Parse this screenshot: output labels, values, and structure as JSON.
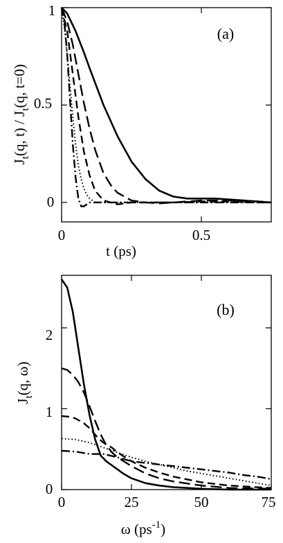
{
  "chart_data": [
    {
      "type": "line",
      "panel_label": "(a)",
      "xlabel": "t (ps)",
      "ylabel": "J_t(q, t) / J_t(q, t=0)",
      "xlim": [
        0,
        0.75
      ],
      "ylim": [
        -0.1,
        1.0
      ],
      "xticks": [
        0,
        0.5
      ],
      "xtick_labels": [
        "0",
        "0.5"
      ],
      "yticks": [
        0,
        0.5,
        1
      ],
      "ytick_labels": [
        "0",
        "0.5",
        "1"
      ],
      "grid": false,
      "series": [
        {
          "style": "solid",
          "x": [
            0,
            0.02,
            0.05,
            0.08,
            0.1,
            0.15,
            0.2,
            0.25,
            0.3,
            0.35,
            0.4,
            0.45,
            0.5,
            0.55,
            0.6,
            0.65,
            0.7,
            0.75
          ],
          "y": [
            1.0,
            0.97,
            0.88,
            0.77,
            0.69,
            0.5,
            0.34,
            0.21,
            0.12,
            0.06,
            0.03,
            0.02,
            0.02,
            0.02,
            0.015,
            0.01,
            0.005,
            0.0
          ]
        },
        {
          "style": "long-dash",
          "x": [
            0,
            0.02,
            0.04,
            0.06,
            0.08,
            0.1,
            0.12,
            0.15,
            0.18,
            0.2,
            0.25,
            0.3,
            0.35,
            0.4,
            0.5,
            0.6,
            0.7,
            0.75
          ],
          "y": [
            1.0,
            0.93,
            0.81,
            0.66,
            0.51,
            0.38,
            0.27,
            0.15,
            0.08,
            0.05,
            0.01,
            0.0,
            -0.005,
            0.0,
            0.01,
            0.01,
            0.005,
            0.0
          ]
        },
        {
          "style": "medium-dash",
          "x": [
            0,
            0.02,
            0.04,
            0.06,
            0.08,
            0.1,
            0.12,
            0.15,
            0.2,
            0.25,
            0.3,
            0.4,
            0.5,
            0.6,
            0.7,
            0.75
          ],
          "y": [
            1.0,
            0.88,
            0.66,
            0.44,
            0.26,
            0.14,
            0.06,
            0.01,
            -0.01,
            0.0,
            0.0,
            0.0,
            0.005,
            0.005,
            0.0,
            0.0
          ]
        },
        {
          "style": "dash-dot",
          "x": [
            0,
            0.01,
            0.02,
            0.03,
            0.04,
            0.05,
            0.06,
            0.07,
            0.08,
            0.1,
            0.12,
            0.15,
            0.2,
            0.3,
            0.4,
            0.5,
            0.6,
            0.75
          ],
          "y": [
            1.0,
            0.93,
            0.76,
            0.53,
            0.3,
            0.13,
            0.02,
            -0.02,
            -0.02,
            0.0,
            0.0,
            0.0,
            0.0,
            0.0,
            0.0,
            0.0,
            0.0,
            0.0
          ]
        },
        {
          "style": "dotted",
          "x": [
            0,
            0.01,
            0.02,
            0.03,
            0.04,
            0.05,
            0.06,
            0.07,
            0.08,
            0.09,
            0.1,
            0.12,
            0.15,
            0.2,
            0.3,
            0.4,
            0.5,
            0.6,
            0.75
          ],
          "y": [
            1.0,
            0.9,
            0.76,
            0.6,
            0.44,
            0.3,
            0.19,
            0.12,
            0.07,
            0.04,
            0.02,
            0.0,
            0.0,
            0.0,
            0.0,
            0.0,
            0.0,
            0.0,
            0.0
          ]
        }
      ]
    },
    {
      "type": "line",
      "panel_label": "(b)",
      "xlabel": "ω (ps^-1)",
      "ylabel": "J_t(q, ω)",
      "xlim": [
        0,
        75
      ],
      "ylim": [
        0,
        2.65
      ],
      "xticks": [
        0,
        25,
        50,
        75
      ],
      "xtick_labels": [
        "0",
        "25",
        "50",
        "75"
      ],
      "yticks": [
        0,
        1,
        2
      ],
      "ytick_labels": [
        "0",
        "1",
        "2"
      ],
      "grid": false,
      "series": [
        {
          "style": "solid",
          "x": [
            0,
            2,
            4,
            6,
            8,
            10,
            12,
            14,
            16,
            18,
            20,
            22,
            25,
            30,
            35,
            40,
            50,
            60,
            75
          ],
          "y": [
            2.6,
            2.5,
            2.2,
            1.75,
            1.3,
            0.92,
            0.62,
            0.42,
            0.35,
            0.3,
            0.25,
            0.2,
            0.14,
            0.08,
            0.05,
            0.03,
            0.01,
            0.0,
            0.0
          ]
        },
        {
          "style": "long-dash",
          "x": [
            0,
            2,
            4,
            6,
            8,
            10,
            12,
            14,
            16,
            18,
            20,
            25,
            30,
            35,
            40,
            50,
            60,
            75
          ],
          "y": [
            1.5,
            1.48,
            1.42,
            1.33,
            1.2,
            1.03,
            0.85,
            0.68,
            0.55,
            0.46,
            0.4,
            0.29,
            0.2,
            0.14,
            0.1,
            0.05,
            0.02,
            0.01
          ]
        },
        {
          "style": "medium-dash",
          "x": [
            0,
            3,
            5,
            8,
            10,
            13,
            15,
            18,
            20,
            25,
            30,
            35,
            40,
            50,
            60,
            75
          ],
          "y": [
            0.91,
            0.9,
            0.88,
            0.82,
            0.76,
            0.64,
            0.58,
            0.52,
            0.46,
            0.35,
            0.27,
            0.21,
            0.16,
            0.09,
            0.05,
            0.02
          ]
        },
        {
          "style": "dash-dot",
          "x": [
            0,
            5,
            10,
            15,
            20,
            25,
            30,
            35,
            40,
            45,
            50,
            55,
            60,
            65,
            70,
            75
          ],
          "y": [
            0.48,
            0.47,
            0.44,
            0.44,
            0.4,
            0.35,
            0.33,
            0.31,
            0.29,
            0.27,
            0.25,
            0.23,
            0.21,
            0.18,
            0.16,
            0.13
          ]
        },
        {
          "style": "dotted",
          "x": [
            0,
            5,
            10,
            15,
            20,
            25,
            30,
            35,
            40,
            45,
            50,
            55,
            60,
            65,
            70,
            75
          ],
          "y": [
            0.63,
            0.62,
            0.58,
            0.52,
            0.46,
            0.4,
            0.35,
            0.31,
            0.27,
            0.23,
            0.2,
            0.17,
            0.14,
            0.11,
            0.08,
            0.05
          ]
        }
      ]
    }
  ]
}
